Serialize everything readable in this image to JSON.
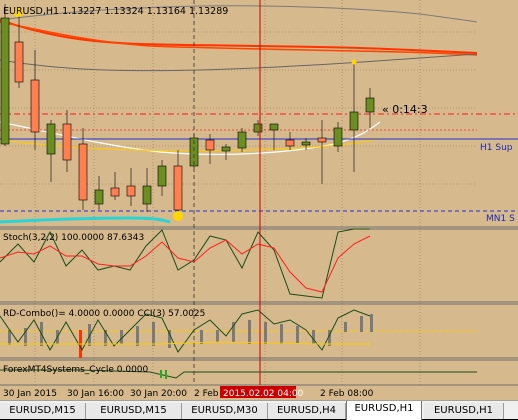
{
  "main": {
    "header": "EURUSD,H1  1.13227 1.13324 1.13164 1.13289",
    "countdown": "« 0:14:3",
    "h1_support_label": "H1 Sup",
    "mn1_support_label": "MN1 S"
  },
  "stoch": {
    "header": "Stoch(3,2,2) 100.0000 87.6343"
  },
  "rd": {
    "header": "RD-Combo()= 4.0000 0.0000 CCI(3) 57.0025"
  },
  "cycle": {
    "header": "ForexMT4Systems_Cycle 0.0000"
  },
  "time_axis": {
    "labels": [
      "30 Jan 2015",
      "30 Jan 16:00",
      "30 Jan 20:00",
      "2 Feb",
      "2 Feb 08:00"
    ],
    "crosshair_time": "2015.02.02 04:00"
  },
  "tabs": [
    "EURUSD,M15",
    "EURUSD,M15",
    "EURUSD,M30",
    "EURUSD,H4",
    "EURUSD,H1",
    "EURUSD,H1"
  ],
  "colors": {
    "background": "#d6b98c",
    "bull": "#6b8e23",
    "bear": "#ff7f50",
    "crosshair": "#cc0000"
  }
}
